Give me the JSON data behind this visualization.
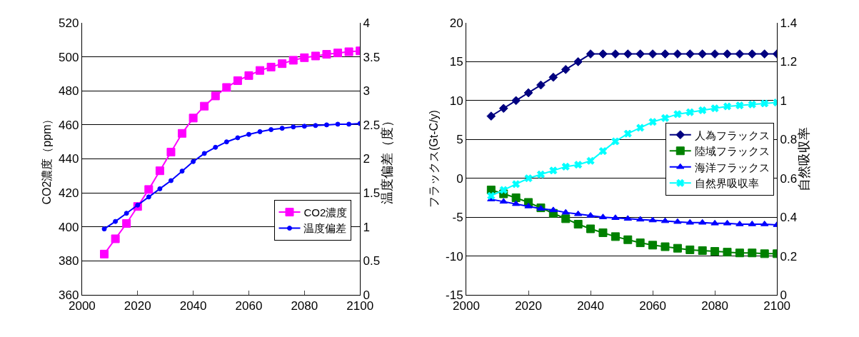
{
  "chart_data": [
    {
      "type": "line",
      "ylabel": "CO2濃度（ppm）",
      "y2label": "温度偏差（度）",
      "xlim": [
        2000,
        2100
      ],
      "xticks": [
        2000,
        2020,
        2040,
        2060,
        2080,
        2100
      ],
      "ylim": [
        360,
        520
      ],
      "yticks": [
        360,
        380,
        400,
        420,
        440,
        460,
        480,
        500,
        520
      ],
      "y2lim": [
        0,
        4
      ],
      "y2ticks": [
        0,
        0.5,
        1,
        1.5,
        2,
        2.5,
        3,
        3.5,
        4
      ],
      "grid": "y",
      "legend": "bottom right",
      "x": [
        2008,
        2012,
        2016,
        2020,
        2024,
        2028,
        2032,
        2036,
        2040,
        2044,
        2048,
        2052,
        2056,
        2060,
        2064,
        2068,
        2072,
        2076,
        2080,
        2084,
        2088,
        2092,
        2096,
        2100
      ],
      "series": [
        {
          "name": "CO2濃度",
          "color": "#ff00ff",
          "marker": "square",
          "values": [
            384,
            393,
            402,
            412,
            422,
            433,
            444,
            455,
            464,
            471,
            477,
            482,
            486,
            489,
            492,
            494,
            496,
            498,
            499.5,
            500.5,
            501.5,
            502.3,
            503,
            503.5
          ]
        },
        {
          "name": "温度偏差",
          "color": "#0000ff",
          "marker": "circle",
          "axis": "y2",
          "values": [
            0.97,
            1.08,
            1.2,
            1.32,
            1.44,
            1.56,
            1.68,
            1.82,
            1.96,
            2.08,
            2.17,
            2.25,
            2.31,
            2.36,
            2.4,
            2.43,
            2.45,
            2.47,
            2.48,
            2.49,
            2.5,
            2.51,
            2.51,
            2.52
          ]
        }
      ]
    },
    {
      "type": "line",
      "ylabel": "フラックス(Gt-C/y)",
      "y2label": "自然吸収率",
      "xlim": [
        2000,
        2100
      ],
      "xticks": [
        2000,
        2020,
        2040,
        2060,
        2080,
        2100
      ],
      "ylim": [
        -15,
        20
      ],
      "yticks": [
        -15,
        -10,
        -5,
        0,
        5,
        10,
        15,
        20
      ],
      "y2lim": [
        0,
        1.4
      ],
      "y2ticks": [
        0,
        0.2,
        0.4,
        0.6,
        0.8,
        1,
        1.2,
        1.4
      ],
      "grid": "y",
      "legend": "right",
      "x": [
        2008,
        2012,
        2016,
        2020,
        2024,
        2028,
        2032,
        2036,
        2040,
        2044,
        2048,
        2052,
        2056,
        2060,
        2064,
        2068,
        2072,
        2076,
        2080,
        2084,
        2088,
        2092,
        2096,
        2100
      ],
      "series": [
        {
          "name": "人為フラックス",
          "color": "#000080",
          "marker": "diamond",
          "values": [
            8,
            9,
            10,
            11,
            12,
            13,
            14,
            15,
            16,
            16,
            16,
            16,
            16,
            16,
            16,
            16,
            16,
            16,
            16,
            16,
            16,
            16,
            16,
            16
          ]
        },
        {
          "name": "陸域フラックス",
          "color": "#008000",
          "marker": "square",
          "values": [
            -1.5,
            -2,
            -2.5,
            -3.1,
            -3.8,
            -4.5,
            -5.2,
            -5.9,
            -6.5,
            -7,
            -7.5,
            -7.9,
            -8.3,
            -8.6,
            -8.8,
            -9,
            -9.2,
            -9.3,
            -9.4,
            -9.5,
            -9.6,
            -9.6,
            -9.7,
            -9.7
          ]
        },
        {
          "name": "海洋フラックス",
          "color": "#0000ff",
          "marker": "triangle",
          "values": [
            -2.7,
            -3,
            -3.3,
            -3.6,
            -3.9,
            -4.1,
            -4.4,
            -4.6,
            -4.8,
            -5,
            -5.1,
            -5.2,
            -5.3,
            -5.4,
            -5.5,
            -5.6,
            -5.7,
            -5.7,
            -5.8,
            -5.8,
            -5.9,
            -5.9,
            -5.9,
            -6
          ]
        },
        {
          "name": "自然界吸収率",
          "color": "#00ffff",
          "marker": "cross",
          "axis": "y2",
          "values": [
            0.51,
            0.54,
            0.57,
            0.6,
            0.62,
            0.64,
            0.66,
            0.67,
            0.69,
            0.74,
            0.79,
            0.83,
            0.86,
            0.89,
            0.91,
            0.93,
            0.94,
            0.95,
            0.96,
            0.97,
            0.975,
            0.98,
            0.985,
            0.99
          ]
        }
      ]
    }
  ]
}
